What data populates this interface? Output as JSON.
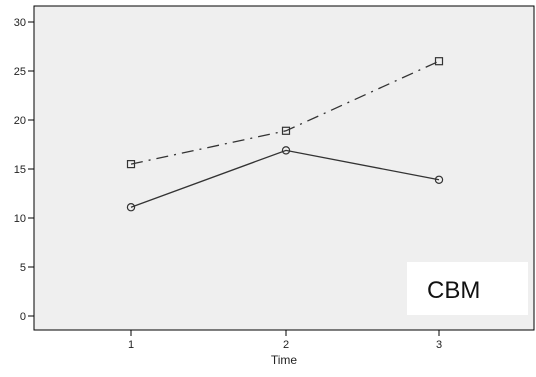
{
  "chart_data": {
    "type": "line",
    "title": "",
    "xlabel": "Time",
    "ylabel": "",
    "x": [
      1,
      2,
      3
    ],
    "x_tick_labels": [
      "1",
      "2",
      "3"
    ],
    "ylim": [
      0,
      30
    ],
    "y_ticks": [
      0,
      5,
      10,
      15,
      20,
      25,
      30
    ],
    "grid": false,
    "series": [
      {
        "marker": "square",
        "line_style": "dash-dot",
        "values": [
          15.5,
          18.9,
          26
        ]
      },
      {
        "marker": "circle",
        "line_style": "solid",
        "values": [
          11.1,
          16.9,
          13.9
        ]
      }
    ],
    "annotations": [
      "CBM"
    ],
    "colors": {
      "plot_background": "#efefef",
      "line": "#333333",
      "annotation_box": "#ffffff"
    }
  }
}
